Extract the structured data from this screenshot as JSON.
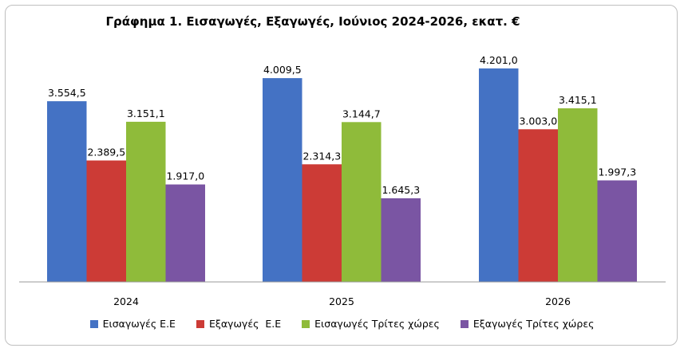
{
  "chart_data": {
    "type": "bar",
    "title": "Γράφημα 1. Εισαγωγές, Εξαγωγές, Ιούνιος 2024-2026, εκατ. €",
    "categories": [
      "2024",
      "2025",
      "2026"
    ],
    "series": [
      {
        "name": "Εισαγωγές Ε.Ε",
        "color": "#4472c4",
        "values": [
          3554.5,
          4009.5,
          4201.0
        ],
        "labels": [
          "3.554,5",
          "4.009,5",
          "4.201,0"
        ]
      },
      {
        "name": "Εξαγωγές  Ε.Ε",
        "color": "#cc3b36",
        "values": [
          2389.5,
          2314.3,
          3003.0
        ],
        "labels": [
          "2.389,5",
          "2.314,3",
          "3.003,0"
        ]
      },
      {
        "name": "Εισαγωγές Τρίτες χώρες",
        "color": "#8fbb3a",
        "values": [
          3151.1,
          3144.7,
          3415.1
        ],
        "labels": [
          "3.151,1",
          "3.144,7",
          "3.415,1"
        ]
      },
      {
        "name": "Εξαγωγές Τρίτες χώρες",
        "color": "#7a55a3",
        "values": [
          1917.0,
          1645.3,
          1997.3
        ],
        "labels": [
          "1.917,0",
          "1.645,3",
          "1.997,3"
        ]
      }
    ],
    "ylim": [
      0,
      4700
    ],
    "grid": false,
    "legend": "bottom"
  }
}
